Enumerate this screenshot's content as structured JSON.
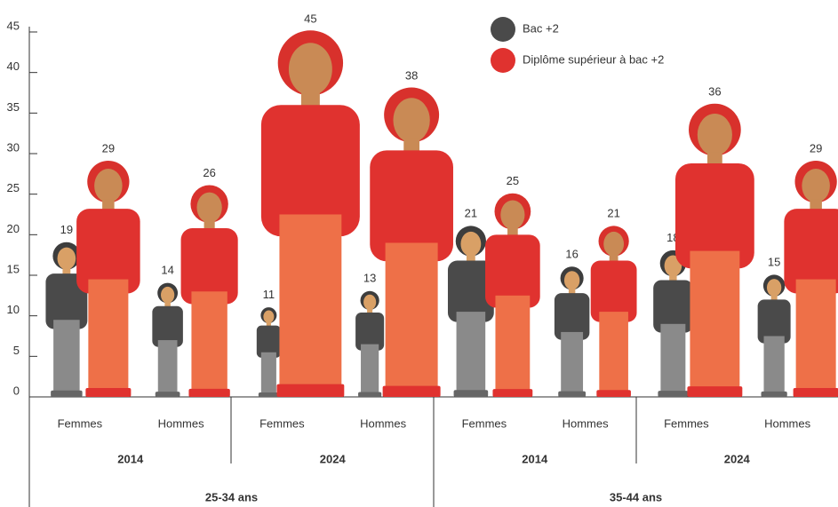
{
  "chart_data": {
    "type": "pictogram",
    "categories": [
      "Femmes",
      "Hommes",
      "Femmes",
      "Hommes",
      "Femmes",
      "Hommes",
      "Femmes",
      "Hommes"
    ],
    "years": [
      "2014",
      "2024",
      "2014",
      "2024"
    ],
    "age_groups": [
      "25-34 ans",
      "35-44 ans"
    ],
    "series": [
      {
        "name": "Bac +2",
        "color": "#4a4a4a",
        "values": [
          19,
          14,
          11,
          13,
          21,
          16,
          18,
          15
        ]
      },
      {
        "name": "Diplôme supérieur à bac +2",
        "color": "#e0322f",
        "values": [
          29,
          26,
          45,
          38,
          25,
          21,
          36,
          29
        ]
      }
    ],
    "ylim": [
      0,
      45
    ],
    "yticks": [
      0,
      5,
      10,
      15,
      20,
      25,
      30,
      35,
      40,
      45
    ]
  }
}
